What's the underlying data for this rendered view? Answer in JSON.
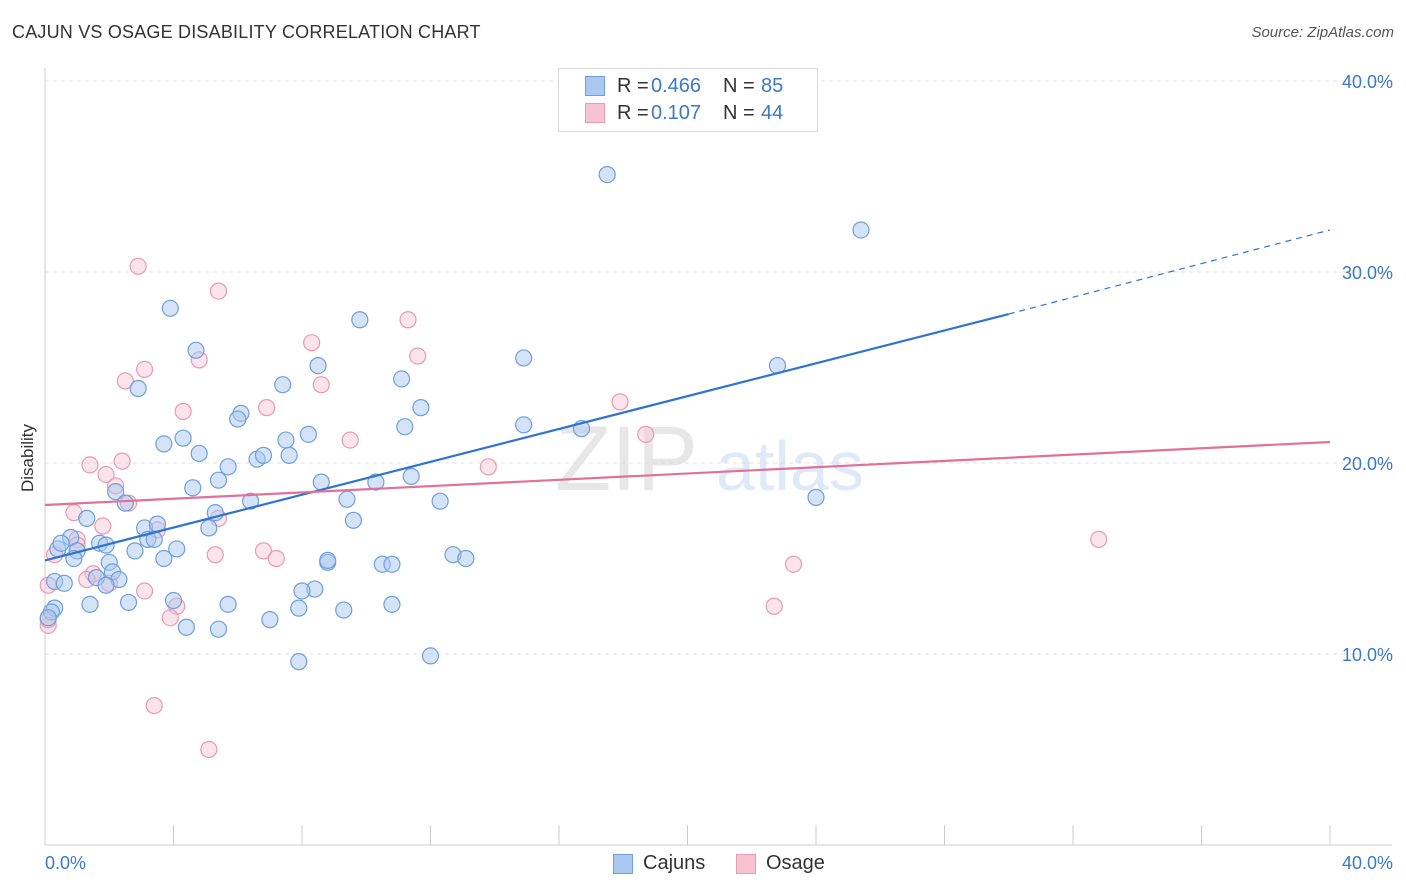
{
  "title": "CAJUN VS OSAGE DISABILITY CORRELATION CHART",
  "source": "Source: ZipAtlas.com",
  "watermark": {
    "zip": "ZIP",
    "atlas": "atlas"
  },
  "legend_top": {
    "rows": [
      {
        "r_label": "R =",
        "r_value": "0.466",
        "n_label": "N =",
        "n_value": "85"
      },
      {
        "r_label": "R =",
        "r_value": "0.107",
        "n_label": "N =",
        "n_value": "44"
      }
    ]
  },
  "chart_data": {
    "type": "scatter",
    "title": "CAJUN VS OSAGE DISABILITY CORRELATION CHART",
    "xlabel": "",
    "ylabel": "Disability",
    "xlim": [
      0,
      40
    ],
    "ylim": [
      0,
      41
    ],
    "x_tick_labels": [
      "0.0%",
      "40.0%"
    ],
    "y_ticks": [
      10,
      20,
      30,
      40
    ],
    "y_tick_labels": [
      "10.0%",
      "20.0%",
      "30.0%",
      "40.0%"
    ],
    "grid": true,
    "legend_position": "bottom",
    "colors": {
      "cajuns_fill": "#aac8f0",
      "cajuns_stroke": "#6f9fdc",
      "cajuns_line": "#2f74d0",
      "osage_fill": "#f7c3d3",
      "osage_stroke": "#e89ab3",
      "osage_line": "#e0719a",
      "tick_label": "#3a78c9"
    },
    "series": [
      {
        "name": "Cajuns",
        "r": 0.466,
        "n": 85,
        "trend": {
          "x0": 0,
          "y0": 14.9,
          "x1": 30,
          "y1": 27.8,
          "dash_x1": 40,
          "dash_y1": 32.2
        },
        "points": [
          [
            17.5,
            35.1
          ],
          [
            25.4,
            32.2
          ],
          [
            3.9,
            28.1
          ],
          [
            9.8,
            27.5
          ],
          [
            4.7,
            25.9
          ],
          [
            14.9,
            25.5
          ],
          [
            8.5,
            25.1
          ],
          [
            22.8,
            25.1
          ],
          [
            11.1,
            24.4
          ],
          [
            2.9,
            23.9
          ],
          [
            7.4,
            24.1
          ],
          [
            6.1,
            22.6
          ],
          [
            11.7,
            22.9
          ],
          [
            6.0,
            22.3
          ],
          [
            11.2,
            21.9
          ],
          [
            14.9,
            22.0
          ],
          [
            16.7,
            21.8
          ],
          [
            4.3,
            21.3
          ],
          [
            8.2,
            21.5
          ],
          [
            7.5,
            21.2
          ],
          [
            3.7,
            21.0
          ],
          [
            4.8,
            20.5
          ],
          [
            6.6,
            20.2
          ],
          [
            6.8,
            20.4
          ],
          [
            7.6,
            20.4
          ],
          [
            5.7,
            19.8
          ],
          [
            11.4,
            19.3
          ],
          [
            5.4,
            19.1
          ],
          [
            10.3,
            19.0
          ],
          [
            4.6,
            18.7
          ],
          [
            8.6,
            19.0
          ],
          [
            2.2,
            18.5
          ],
          [
            2.5,
            17.9
          ],
          [
            6.4,
            18.0
          ],
          [
            9.4,
            18.1
          ],
          [
            12.3,
            18.0
          ],
          [
            24.0,
            18.2
          ],
          [
            5.3,
            17.4
          ],
          [
            1.3,
            17.1
          ],
          [
            3.1,
            16.6
          ],
          [
            5.1,
            16.6
          ],
          [
            3.5,
            16.8
          ],
          [
            9.6,
            17.0
          ],
          [
            3.2,
            16.0
          ],
          [
            3.4,
            16.0
          ],
          [
            0.8,
            16.1
          ],
          [
            1.7,
            15.8
          ],
          [
            1.9,
            15.7
          ],
          [
            0.4,
            15.5
          ],
          [
            0.5,
            15.8
          ],
          [
            1.0,
            15.4
          ],
          [
            2.8,
            15.4
          ],
          [
            4.1,
            15.5
          ],
          [
            0.9,
            15.0
          ],
          [
            2.0,
            14.8
          ],
          [
            8.8,
            14.8
          ],
          [
            8.8,
            14.9
          ],
          [
            3.7,
            15.0
          ],
          [
            12.7,
            15.2
          ],
          [
            13.1,
            15.0
          ],
          [
            10.5,
            14.7
          ],
          [
            10.8,
            14.7
          ],
          [
            2.1,
            14.3
          ],
          [
            1.6,
            14.0
          ],
          [
            2.3,
            13.9
          ],
          [
            0.3,
            13.8
          ],
          [
            0.6,
            13.7
          ],
          [
            1.9,
            13.6
          ],
          [
            8.4,
            13.4
          ],
          [
            8.0,
            13.3
          ],
          [
            4.0,
            12.8
          ],
          [
            1.4,
            12.6
          ],
          [
            2.6,
            12.7
          ],
          [
            5.7,
            12.6
          ],
          [
            9.3,
            12.3
          ],
          [
            7.9,
            12.4
          ],
          [
            10.8,
            12.6
          ],
          [
            0.3,
            12.4
          ],
          [
            0.2,
            12.2
          ],
          [
            4.4,
            11.4
          ],
          [
            5.4,
            11.3
          ],
          [
            7.0,
            11.8
          ],
          [
            12.0,
            9.9
          ],
          [
            7.9,
            9.6
          ],
          [
            0.1,
            11.9
          ]
        ]
      },
      {
        "name": "Osage",
        "r": 0.107,
        "n": 44,
        "trend": {
          "x0": 0,
          "y0": 17.8,
          "x1": 40,
          "y1": 21.1
        },
        "points": [
          [
            2.9,
            30.3
          ],
          [
            5.4,
            29.0
          ],
          [
            11.3,
            27.5
          ],
          [
            8.3,
            26.3
          ],
          [
            11.6,
            25.6
          ],
          [
            4.8,
            25.4
          ],
          [
            3.1,
            24.9
          ],
          [
            2.5,
            24.3
          ],
          [
            8.6,
            24.1
          ],
          [
            17.9,
            23.2
          ],
          [
            6.9,
            22.9
          ],
          [
            4.3,
            22.7
          ],
          [
            18.7,
            21.5
          ],
          [
            9.5,
            21.2
          ],
          [
            13.8,
            19.8
          ],
          [
            1.4,
            19.9
          ],
          [
            2.4,
            20.1
          ],
          [
            1.9,
            19.4
          ],
          [
            2.2,
            18.8
          ],
          [
            2.6,
            17.9
          ],
          [
            0.9,
            17.4
          ],
          [
            5.4,
            17.1
          ],
          [
            1.8,
            16.7
          ],
          [
            3.5,
            16.5
          ],
          [
            1.0,
            16.0
          ],
          [
            1.0,
            15.7
          ],
          [
            6.8,
            15.4
          ],
          [
            5.3,
            15.2
          ],
          [
            7.2,
            15.0
          ],
          [
            32.8,
            16.0
          ],
          [
            0.3,
            15.2
          ],
          [
            23.3,
            14.7
          ],
          [
            1.5,
            14.2
          ],
          [
            1.3,
            13.9
          ],
          [
            2.0,
            13.7
          ],
          [
            0.1,
            13.6
          ],
          [
            3.1,
            13.3
          ],
          [
            4.1,
            12.5
          ],
          [
            22.7,
            12.5
          ],
          [
            3.9,
            11.9
          ],
          [
            0.1,
            11.5
          ],
          [
            0.1,
            11.8
          ],
          [
            3.4,
            7.3
          ],
          [
            5.1,
            5.0
          ]
        ]
      }
    ]
  },
  "bottom_legend": {
    "items": [
      {
        "label": "Cajuns"
      },
      {
        "label": "Osage"
      }
    ]
  }
}
